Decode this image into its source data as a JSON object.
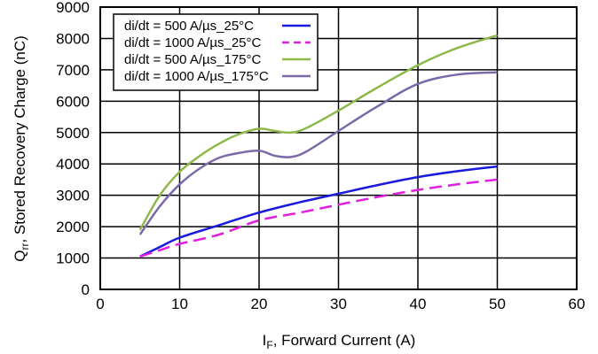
{
  "chart_data": {
    "type": "line",
    "xlabel": {
      "main": "I",
      "sub": "F",
      "rest": ", Forward Current (A)"
    },
    "ylabel": {
      "main": "Q",
      "sub": "rr",
      "rest": ", Stored Recovery Charge (nC)"
    },
    "xlim": [
      0,
      60
    ],
    "ylim": [
      0,
      9000
    ],
    "xticks": [
      0,
      10,
      20,
      30,
      40,
      50,
      60
    ],
    "yticks": [
      0,
      1000,
      2000,
      3000,
      4000,
      5000,
      6000,
      7000,
      8000,
      9000
    ],
    "grid": true,
    "legend_position": "top-left",
    "series": [
      {
        "name": "di/dt = 500 A/µs_25°C",
        "color": "#1a1adf",
        "dash": "solid",
        "x": [
          5,
          7.5,
          10,
          15,
          20,
          25,
          30,
          35,
          40,
          45,
          50
        ],
        "y": [
          1050,
          1350,
          1650,
          2050,
          2450,
          2770,
          3050,
          3330,
          3580,
          3770,
          3920
        ]
      },
      {
        "name": "di/dt = 1000 A/µs_25°C",
        "color": "#e020e0",
        "dash": "dashed",
        "x": [
          5,
          7.5,
          10,
          15,
          20,
          25,
          30,
          35,
          40,
          45,
          50
        ],
        "y": [
          1050,
          1250,
          1450,
          1750,
          2200,
          2440,
          2700,
          2950,
          3170,
          3350,
          3500
        ]
      },
      {
        "name": "di/dt = 500 A/µs_175°C",
        "color": "#8fb84a",
        "dash": "solid",
        "x": [
          5,
          7.5,
          10,
          12.5,
          15,
          17.5,
          20,
          22,
          24,
          26,
          30,
          35,
          40,
          45,
          50
        ],
        "y": [
          1900,
          3000,
          3750,
          4250,
          4650,
          4950,
          5120,
          5050,
          5000,
          5150,
          5700,
          6450,
          7150,
          7700,
          8100
        ]
      },
      {
        "name": "di/dt = 1000 A/µs_175°C",
        "color": "#7a6aa8",
        "dash": "solid",
        "x": [
          5,
          7.5,
          10,
          12.5,
          15,
          17.5,
          20,
          22,
          24,
          26,
          30,
          35,
          40,
          45,
          50
        ],
        "y": [
          1750,
          2650,
          3350,
          3850,
          4200,
          4350,
          4420,
          4260,
          4220,
          4400,
          5050,
          5850,
          6550,
          6850,
          6920
        ]
      }
    ]
  }
}
